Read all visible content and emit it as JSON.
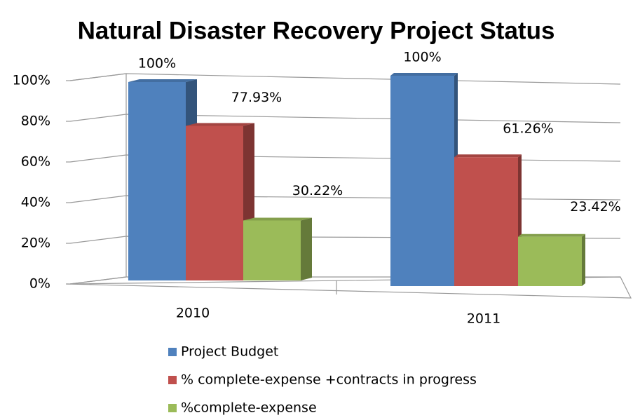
{
  "chart_data": {
    "type": "bar3d",
    "title": "Natural Disaster Recovery Project Status",
    "categories": [
      "2010",
      "2011"
    ],
    "series": [
      {
        "name": "Project Budget",
        "color": "#4f81bd",
        "values": [
          100,
          100
        ],
        "value_labels": [
          "100%",
          "100%"
        ]
      },
      {
        "name": "% complete-expense +contracts in progress",
        "color": "#c0504d",
        "values": [
          77.93,
          61.26
        ],
        "value_labels": [
          "77.93%",
          "61.26%"
        ]
      },
      {
        "name": "%complete-expense",
        "color": "#9bbb59",
        "values": [
          30.22,
          23.42
        ],
        "value_labels": [
          "30.22%",
          "23.42%"
        ]
      }
    ],
    "ylim": [
      0,
      100
    ],
    "yticks": [
      {
        "value": 0,
        "label": "0%"
      },
      {
        "value": 20,
        "label": "20%"
      },
      {
        "value": 40,
        "label": "40%"
      },
      {
        "value": 60,
        "label": "60%"
      },
      {
        "value": 80,
        "label": "80%"
      },
      {
        "value": 100,
        "label": "100%"
      }
    ],
    "grid": true
  }
}
